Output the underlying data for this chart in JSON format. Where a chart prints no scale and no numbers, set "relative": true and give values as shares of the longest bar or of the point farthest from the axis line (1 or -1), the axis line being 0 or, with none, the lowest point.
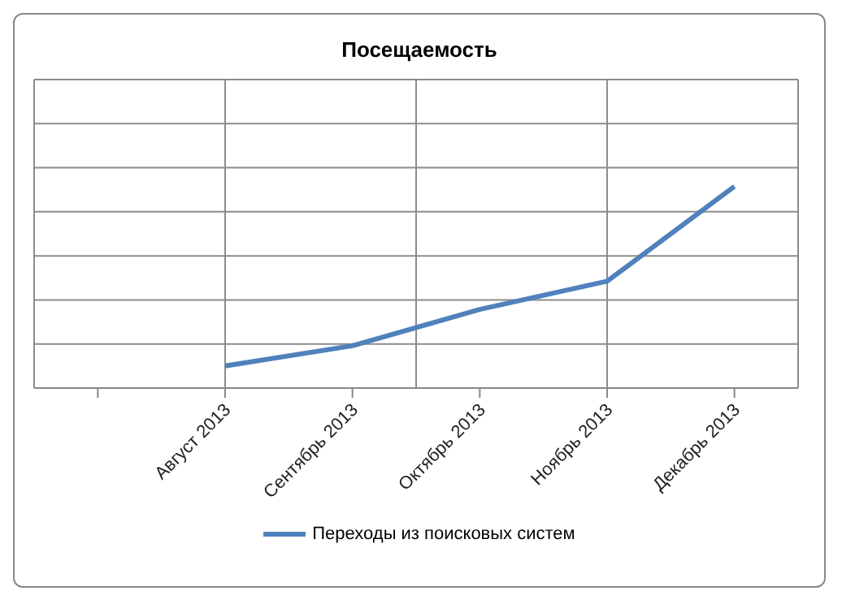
{
  "chart_data": {
    "type": "line",
    "title": "Посещаемость",
    "relative": true,
    "categories": [
      null,
      "Август 2013",
      "Сентябрь 2013",
      "Октябрь 2013",
      "Ноябрь 2013",
      "Декабрь 2013"
    ],
    "series": [
      {
        "name": "Переходы из поисковых систем",
        "color": "#4f81bd",
        "values": [
          null,
          0.11,
          0.21,
          0.39,
          0.53,
          1
        ]
      }
    ],
    "grid": true,
    "legend": "bottom",
    "marker": "none",
    "line_style": "solid"
  }
}
